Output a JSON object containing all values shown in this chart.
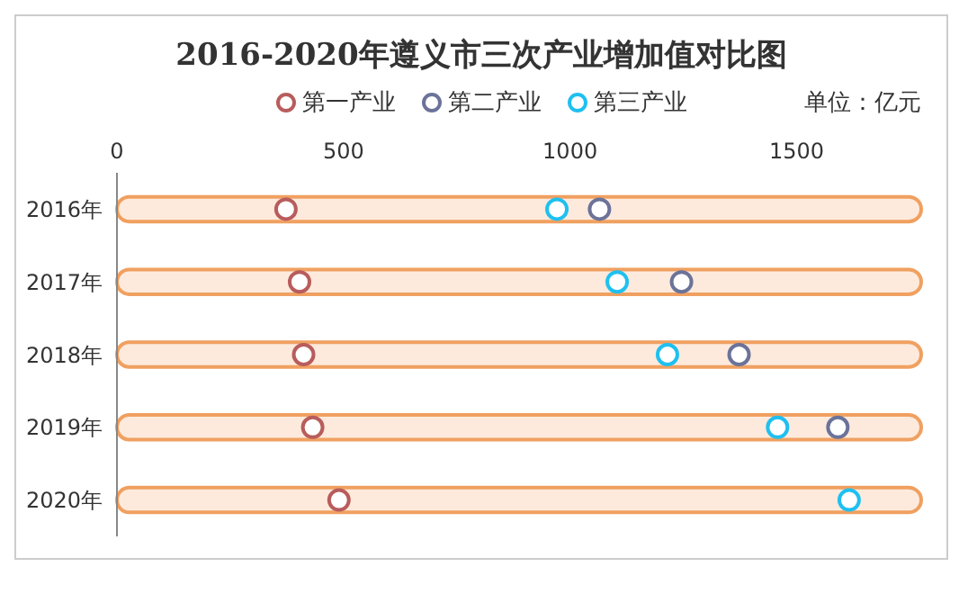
{
  "chart_data": {
    "type": "scatter",
    "title": "2016-2020年遵义市三次产业增加值对比图",
    "categories": [
      "2016年",
      "2017年",
      "2018年",
      "2019年",
      "2020年"
    ],
    "series": [
      {
        "type": "bar",
        "color": "#fdeadc",
        "values": [
          1775,
          1775,
          1775,
          1775,
          1775
        ]
      },
      {
        "name": "第一产业",
        "color": "#b85c5c",
        "values": [
          373,
          403,
          412,
          432,
          490
        ]
      },
      {
        "name": "第二产业",
        "color": "#6b7399",
        "values": [
          1065,
          1246,
          1373,
          1591,
          null
        ]
      },
      {
        "name": "第三产业",
        "color": "#1fc0f0",
        "values": [
          971,
          1104,
          1215,
          1458,
          1616
        ]
      }
    ],
    "orientation": "horizontal",
    "xlim": [
      0,
      1775
    ],
    "xticks": [
      0,
      500,
      1000,
      1500
    ],
    "marker": "circle",
    "legend": "top",
    "grid": false,
    "annotations": [
      "单位：亿元"
    ]
  }
}
